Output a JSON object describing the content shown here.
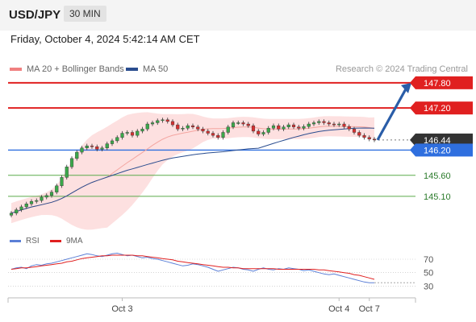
{
  "header": {
    "symbol": "USD/JPY",
    "timeframe": "30 MIN"
  },
  "datetime": "Friday, October 4, 2024 5:42:14 AM CET",
  "legend": [
    {
      "label": "MA 20 + Bollinger Bands",
      "color": "#f08080"
    },
    {
      "label": "MA 50",
      "color": "#2a4d8f"
    }
  ],
  "credit": "Research © 2024 Trading Central",
  "rsi_legend": [
    {
      "label": "RSI",
      "color": "#5b7fd6"
    },
    {
      "label": "9MA",
      "color": "#e02020"
    }
  ],
  "chart_data": [
    {
      "type": "candlestick",
      "x_labels": [
        "Oct 3",
        "Oct 4",
        "Oct 7"
      ],
      "y_range": [
        144.6,
        147.95
      ],
      "indicators": [
        "MA 20 + Bollinger Bands",
        "MA 50"
      ],
      "levels": [
        {
          "label": "147.80",
          "value": 147.8,
          "kind": "resistance",
          "color": "#e02020"
        },
        {
          "label": "147.20",
          "value": 147.2,
          "kind": "resistance",
          "color": "#e02020"
        },
        {
          "label": "146.44",
          "value": 146.44,
          "kind": "last_price",
          "color": "#333333"
        },
        {
          "label": "146.20",
          "value": 146.2,
          "kind": "pivot",
          "color": "#2f6fdf"
        },
        {
          "label": "145.60",
          "value": 145.6,
          "kind": "support",
          "color": "#5aaa4a"
        },
        {
          "label": "145.10",
          "value": 145.1,
          "kind": "support",
          "color": "#5aaa4a"
        }
      ],
      "close": [
        144.7,
        144.78,
        144.85,
        144.92,
        144.98,
        145.0,
        145.08,
        145.12,
        145.2,
        145.35,
        145.55,
        145.8,
        146.0,
        146.15,
        146.25,
        146.3,
        146.28,
        146.22,
        146.25,
        146.35,
        146.42,
        146.5,
        146.6,
        146.62,
        146.55,
        146.65,
        146.7,
        146.82,
        146.85,
        146.9,
        146.92,
        146.88,
        146.8,
        146.7,
        146.72,
        146.78,
        146.75,
        146.7,
        146.65,
        146.6,
        146.55,
        146.5,
        146.62,
        146.75,
        146.85,
        146.85,
        146.82,
        146.78,
        146.65,
        146.58,
        146.62,
        146.72,
        146.78,
        146.7,
        146.75,
        146.8,
        146.75,
        146.72,
        146.76,
        146.82,
        146.85,
        146.88,
        146.85,
        146.82,
        146.8,
        146.82,
        146.76,
        146.7,
        146.62,
        146.55,
        146.5,
        146.46,
        146.44
      ]
    },
    {
      "type": "line",
      "title": "RSI",
      "y_ticks": [
        30,
        50,
        70
      ],
      "y_range": [
        22,
        82
      ],
      "series": [
        {
          "name": "RSI",
          "values": [
            55,
            57,
            58,
            56,
            60,
            62,
            61,
            63,
            64,
            66,
            68,
            70,
            72,
            74,
            76,
            78,
            77,
            75,
            74,
            76,
            78,
            79,
            77,
            75,
            76,
            74,
            72,
            73,
            71,
            70,
            68,
            66,
            64,
            62,
            60,
            61,
            63,
            62,
            60,
            58,
            55,
            52,
            54,
            56,
            58,
            57,
            55,
            54,
            52,
            55,
            57,
            55,
            54,
            56,
            55,
            57,
            56,
            55,
            53,
            54,
            52,
            50,
            48,
            47,
            48,
            46,
            44,
            42,
            40,
            38,
            36,
            35,
            35
          ]
        },
        {
          "name": "9MA",
          "values": [
            55,
            56,
            57,
            57,
            58,
            59,
            60,
            61,
            62,
            63,
            64,
            66,
            67,
            69,
            71,
            72,
            73,
            74,
            75,
            75,
            76,
            76,
            76,
            76,
            76,
            75,
            75,
            74,
            73,
            72,
            71,
            70,
            69,
            67,
            66,
            65,
            64,
            63,
            62,
            61,
            60,
            59,
            58,
            58,
            57,
            57,
            56,
            56,
            56,
            56,
            56,
            56,
            56,
            55,
            55,
            55,
            55,
            55,
            55,
            55,
            55,
            54,
            54,
            53,
            52,
            51,
            50,
            49,
            47,
            46,
            44,
            42,
            40
          ]
        }
      ]
    }
  ]
}
